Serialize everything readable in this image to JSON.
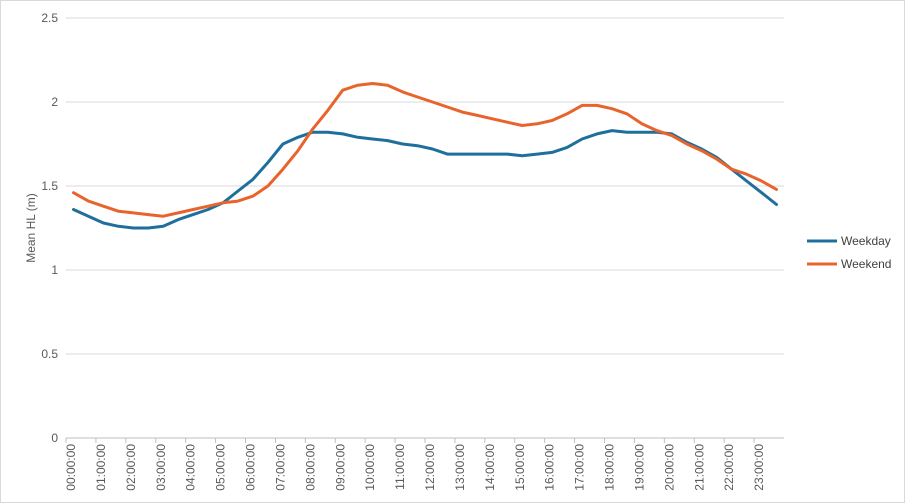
{
  "chart_data": {
    "type": "line",
    "title": "",
    "xlabel": "",
    "ylabel": "Mean HL (m)",
    "ylim": [
      0,
      2.5
    ],
    "yticks": [
      "0",
      "0.5",
      "1",
      "1.5",
      "2",
      "2.5"
    ],
    "ytick_values": [
      0,
      0.5,
      1,
      1.5,
      2,
      2.5
    ],
    "grid": true,
    "legend_position": "right",
    "x_tick_labels": [
      "00:00:00",
      "01:00:00",
      "02:00:00",
      "03:00:00",
      "04:00:00",
      "05:00:00",
      "06:00:00",
      "07:00:00",
      "08:00:00",
      "09:00:00",
      "10:00:00",
      "11:00:00",
      "12:00:00",
      "13:00:00",
      "14:00:00",
      "15:00:00",
      "16:00:00",
      "17:00:00",
      "18:00:00",
      "19:00:00",
      "20:00:00",
      "21:00:00",
      "22:00:00",
      "23:00:00"
    ],
    "x_hours": [
      0,
      0.5,
      1,
      1.5,
      2,
      2.5,
      3,
      3.5,
      4,
      4.5,
      5,
      5.5,
      6,
      6.5,
      7,
      7.5,
      8,
      8.5,
      9,
      9.5,
      10,
      10.5,
      11,
      11.5,
      12,
      12.5,
      13,
      13.5,
      14,
      14.5,
      15,
      15.5,
      16,
      16.5,
      17,
      17.5,
      18,
      18.5,
      19,
      19.5,
      20,
      20.5,
      21,
      21.5,
      22,
      22.5,
      23,
      23.5
    ],
    "series": [
      {
        "name": "Weekday",
        "color": "#1f6f9c",
        "values": [
          1.36,
          1.32,
          1.28,
          1.26,
          1.25,
          1.25,
          1.26,
          1.3,
          1.33,
          1.36,
          1.4,
          1.47,
          1.54,
          1.64,
          1.75,
          1.79,
          1.82,
          1.82,
          1.81,
          1.79,
          1.78,
          1.77,
          1.75,
          1.74,
          1.72,
          1.69,
          1.69,
          1.69,
          1.69,
          1.69,
          1.68,
          1.69,
          1.7,
          1.73,
          1.78,
          1.81,
          1.83,
          1.82,
          1.82,
          1.82,
          1.81,
          1.76,
          1.72,
          1.67,
          1.6,
          1.53,
          1.46,
          1.39
        ]
      },
      {
        "name": "Weekend",
        "color": "#e8642c",
        "values": [
          1.46,
          1.41,
          1.38,
          1.35,
          1.34,
          1.33,
          1.32,
          1.34,
          1.36,
          1.38,
          1.4,
          1.41,
          1.44,
          1.5,
          1.6,
          1.71,
          1.84,
          1.95,
          2.07,
          2.1,
          2.11,
          2.1,
          2.06,
          2.03,
          2.0,
          1.97,
          1.94,
          1.92,
          1.9,
          1.88,
          1.86,
          1.87,
          1.89,
          1.93,
          1.98,
          1.98,
          1.96,
          1.93,
          1.87,
          1.83,
          1.8,
          1.75,
          1.71,
          1.66,
          1.6,
          1.57,
          1.53,
          1.48
        ]
      }
    ]
  }
}
